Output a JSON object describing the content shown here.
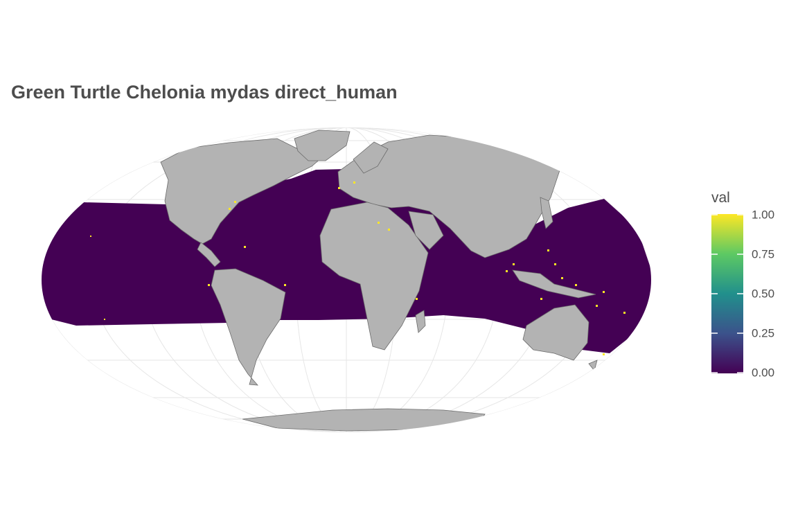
{
  "title": "Green Turtle Chelonia mydas direct_human",
  "legend": {
    "title": "val",
    "ticks": [
      {
        "label": "1.00",
        "value": 1.0
      },
      {
        "label": "0.75",
        "value": 0.75
      },
      {
        "label": "0.50",
        "value": 0.5
      },
      {
        "label": "0.25",
        "value": 0.25
      },
      {
        "label": "0.00",
        "value": 0.0
      }
    ],
    "colors": [
      "#440154",
      "#3b528b",
      "#21908c",
      "#5dc963",
      "#fde725"
    ]
  },
  "map": {
    "projection": "mollweide",
    "ocean_fill_value": 0.0,
    "hotspot_value": 1.0,
    "land_color": "#b3b3b3",
    "graticule_color": "#e6e6e6",
    "data_lat_range": [
      -40,
      40
    ]
  }
}
